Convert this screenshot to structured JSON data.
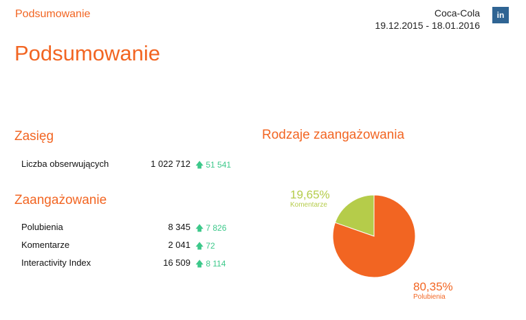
{
  "header": {
    "small_title": "Podsumowanie",
    "brand": "Coca-Cola",
    "date_range": "19.12.2015 - 18.01.2016",
    "network_badge": "in",
    "network_icon": "linkedin-icon"
  },
  "page_title": "Podsumowanie",
  "reach": {
    "title": "Zasięg",
    "rows": [
      {
        "label": "Liczba obserwujących",
        "value": "1 022 712",
        "delta": "51 541"
      }
    ]
  },
  "engagement": {
    "title": "Zaangażowanie",
    "rows": [
      {
        "label": "Polubienia",
        "value": "8 345",
        "delta": "7 826"
      },
      {
        "label": "Komentarze",
        "value": "2 041",
        "delta": "72"
      },
      {
        "label": "Interactivity Index",
        "value": "16 509",
        "delta": "8 114"
      }
    ]
  },
  "colors": {
    "accent": "#f26522",
    "positive": "#3cc88a",
    "linkedin": "#2f6493",
    "comments": "#b5cc4a",
    "likes": "#f26522"
  },
  "chart_data": {
    "type": "pie",
    "title": "Rodzaje zaangażowania",
    "slices": [
      {
        "label": "Komentarze",
        "value": 19.65,
        "display": "19,65%",
        "color": "#b5cc4a"
      },
      {
        "label": "Polubienia",
        "value": 80.35,
        "display": "80,35%",
        "color": "#f26522"
      }
    ]
  }
}
